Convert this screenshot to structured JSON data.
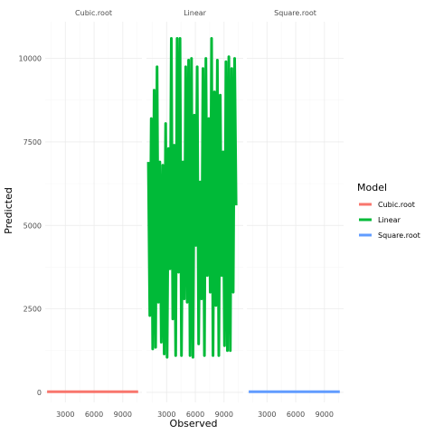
{
  "chart_data": {
    "type": "line",
    "facets": [
      "Cubic.root",
      "Linear",
      "Square.root"
    ],
    "xlabel": "Observed",
    "ylabel": "Predicted",
    "x_ticks": [
      3000,
      6000,
      9000
    ],
    "x_tick_labels": [
      "3000",
      "6000",
      "9000"
    ],
    "xlim": [
      900,
      11000
    ],
    "y_ticks": [
      0,
      2500,
      5000,
      7500,
      10000
    ],
    "y_tick_labels": [
      "0",
      "2500",
      "5000",
      "7500",
      "10000"
    ],
    "ylim": [
      -300,
      11100
    ],
    "legend_title": "Model",
    "legend_position": "right",
    "series": [
      {
        "name": "Cubic.root",
        "facet": "Cubic.root",
        "color": "#F8766D",
        "x": [
          1100,
          10600
        ],
        "y": [
          20,
          20
        ]
      },
      {
        "name": "Linear",
        "facet": "Linear",
        "color": "#00BA38",
        "x": [
          1100,
          1250,
          1400,
          1550,
          1700,
          1850,
          2000,
          2150,
          2300,
          2450,
          2600,
          2750,
          2900,
          3050,
          3200,
          3350,
          3500,
          3650,
          3800,
          3950,
          4100,
          4250,
          4400,
          4550,
          4700,
          4850,
          5000,
          5150,
          5300,
          5450,
          5600,
          5750,
          5900,
          6050,
          6200,
          6350,
          6500,
          6650,
          6800,
          6950,
          7100,
          7250,
          7400,
          7550,
          7700,
          7850,
          8000,
          8150,
          8300,
          8450,
          8600,
          8750,
          8900,
          9050,
          9200,
          9350,
          9500,
          9650,
          9800,
          9950,
          10100,
          10250
        ],
        "y": [
          6900,
          2300,
          8200,
          1300,
          9050,
          1350,
          9750,
          2700,
          6900,
          1500,
          6800,
          1150,
          8050,
          1050,
          7300,
          3700,
          10600,
          2200,
          7400,
          1100,
          10600,
          3600,
          10600,
          1100,
          6900,
          2800,
          9750,
          2700,
          9950,
          1100,
          10000,
          1050,
          8300,
          4400,
          9750,
          1450,
          6300,
          2800,
          9700,
          1100,
          10000,
          3500,
          8200,
          3000,
          10600,
          1100,
          9000,
          2600,
          9950,
          1100,
          8900,
          3500,
          7200,
          1400,
          9900,
          1250,
          10050,
          1250,
          9700,
          3000,
          10000,
          5600
        ]
      },
      {
        "name": "Square.root",
        "facet": "Square.root",
        "color": "#619CFF",
        "x": [
          1100,
          10600
        ],
        "y": [
          20,
          20
        ]
      }
    ]
  }
}
